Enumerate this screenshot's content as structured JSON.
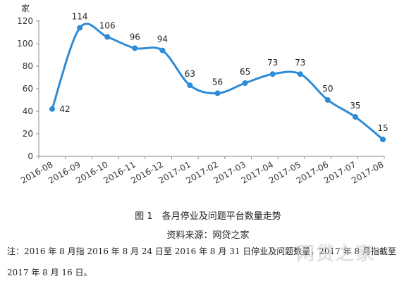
{
  "chart_data": {
    "type": "line",
    "ylabel": "家",
    "ylim": [
      0,
      120
    ],
    "yticks": [
      0,
      20,
      40,
      60,
      80,
      100,
      120
    ],
    "categories": [
      "2016-08",
      "2016-09",
      "2016-10",
      "2016-11",
      "2016-12",
      "2017-01",
      "2017-02",
      "2017-03",
      "2017-04",
      "2017-05",
      "2017-06",
      "2017-07",
      "2017-08"
    ],
    "series": [
      {
        "values": [
          42,
          114,
          106,
          96,
          94,
          63,
          56,
          65,
          73,
          73,
          50,
          35,
          15
        ]
      }
    ],
    "line_color": "#2e8bd6",
    "grid": false,
    "legend": "none"
  },
  "caption": {
    "figure": "图 1　各月停业及问题平台数量走势",
    "source": "资料来源：网贷之家"
  },
  "note": "注：2016 年 8 月指 2016 年 8 月 24 日至 2016 年 8 月 31 日停业及问题数量，2017 年 8 月指截至 2017 年 8 月 16 日。",
  "watermark": "网贷之家"
}
